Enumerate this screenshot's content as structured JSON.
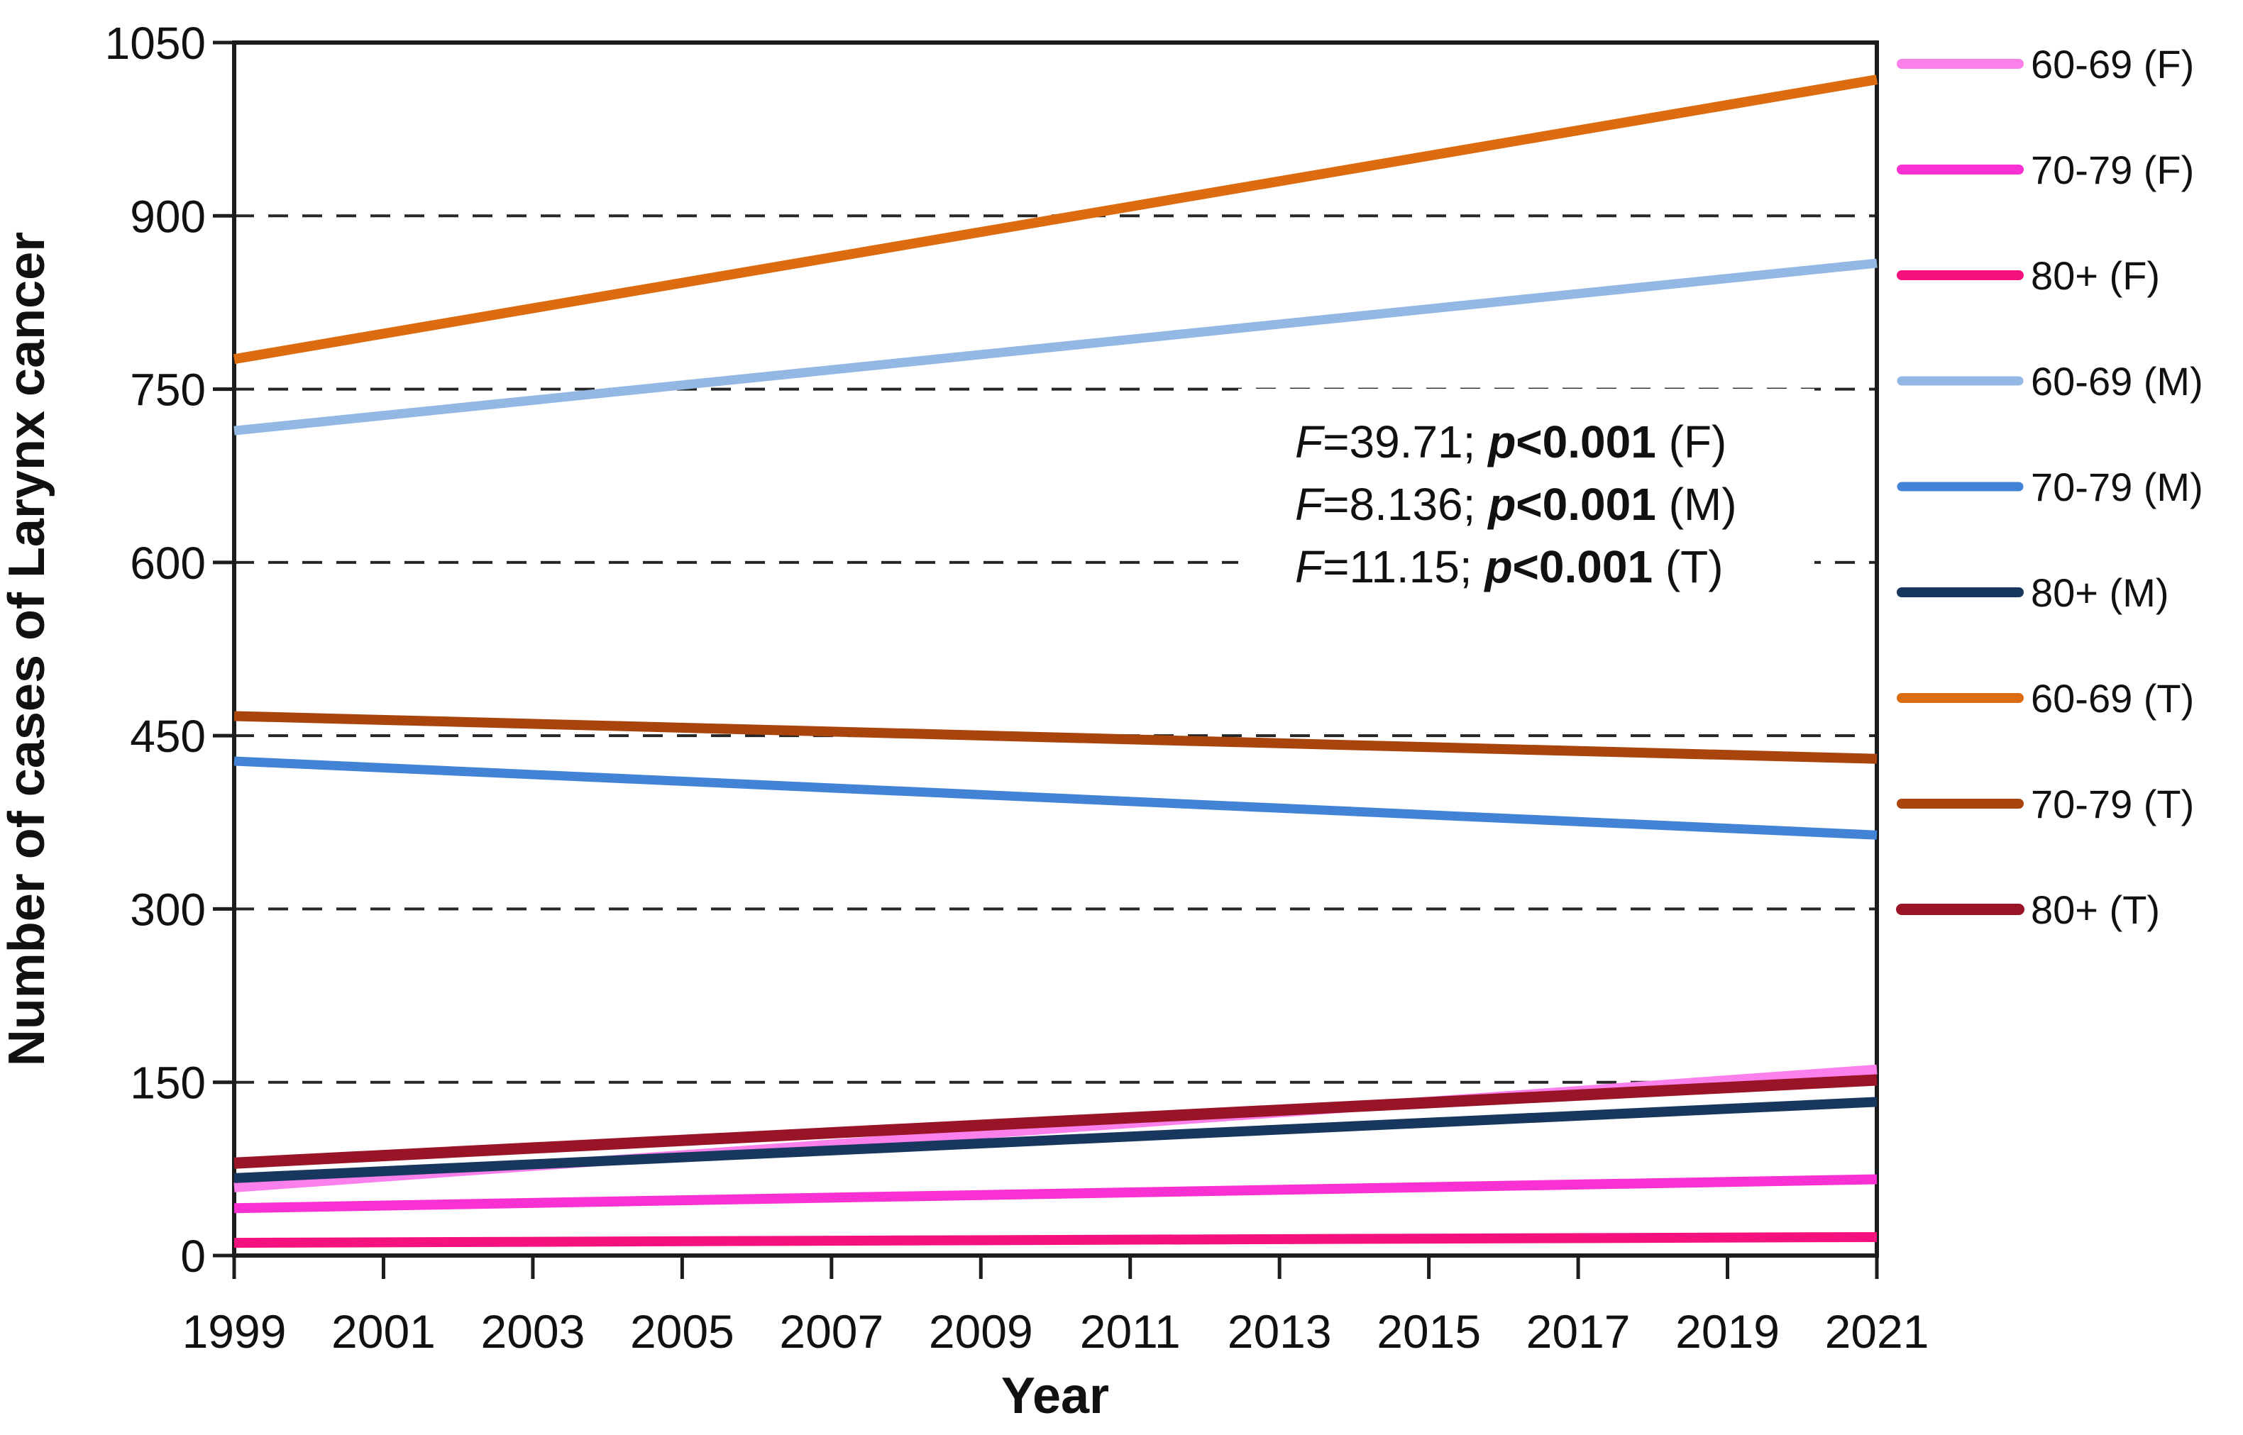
{
  "chart_data": {
    "type": "line",
    "title": "",
    "xlabel": "Year",
    "ylabel": "Number of cases of Larynx cancer",
    "xlim": [
      1999,
      2021
    ],
    "ylim": [
      0,
      1050
    ],
    "xtick_values": [
      1999,
      2001,
      2003,
      2005,
      2007,
      2009,
      2011,
      2013,
      2015,
      2017,
      2019,
      2021
    ],
    "ytick_values": [
      0,
      150,
      300,
      450,
      600,
      750,
      900,
      1050
    ],
    "grid": {
      "horizontal_dashed_at": [
        150,
        300,
        450,
        600,
        750,
        900
      ],
      "color": "#262626",
      "style": "dashed"
    },
    "legend_position": "right-outside",
    "series": [
      {
        "name": "60-69 (F)",
        "color": "#fb80ec",
        "stroke_width": 14,
        "x": [
          1999,
          2021
        ],
        "values": [
          59,
          161
        ]
      },
      {
        "name": "70-79 (F)",
        "color": "#f930d2",
        "stroke_width": 14,
        "x": [
          1999,
          2021
        ],
        "values": [
          41,
          66
        ]
      },
      {
        "name": "80+ (F)",
        "color": "#f5117e",
        "stroke_width": 14,
        "x": [
          1999,
          2021
        ],
        "values": [
          11,
          16
        ]
      },
      {
        "name": "60-69 (M)",
        "color": "#94b8e4",
        "stroke_width": 13,
        "x": [
          1999,
          2021
        ],
        "values": [
          714,
          859
        ]
      },
      {
        "name": "70-79 (M)",
        "color": "#4383d6",
        "stroke_width": 13,
        "x": [
          1999,
          2021
        ],
        "values": [
          428,
          364
        ]
      },
      {
        "name": "80+ (M)",
        "color": "#17375e",
        "stroke_width": 14,
        "x": [
          1999,
          2021
        ],
        "values": [
          67,
          133
        ]
      },
      {
        "name": "60-69 (T)",
        "color": "#dd6b10",
        "stroke_width": 14,
        "x": [
          1999,
          2021
        ],
        "values": [
          776,
          1018
        ]
      },
      {
        "name": "70-79 (T)",
        "color": "#a8440c",
        "stroke_width": 14,
        "x": [
          1999,
          2021
        ],
        "values": [
          467,
          430
        ]
      },
      {
        "name": "80+ (T)",
        "color": "#9a1428",
        "stroke_width": 16,
        "x": [
          1999,
          2021
        ],
        "values": [
          80,
          152
        ]
      }
    ],
    "annotation": {
      "lines": [
        {
          "text": "F=39.71; p<0.001 (F)",
          "segments": [
            {
              "t": "F",
              "s": "i"
            },
            {
              "t": "=39.71; ",
              "s": "n"
            },
            {
              "t": "p",
              "s": "bi"
            },
            {
              "t": "<0.001",
              "s": "b"
            },
            {
              "t": " (F)",
              "s": "n"
            }
          ]
        },
        {
          "text": "F=8.136; p<0.001 (M)",
          "segments": [
            {
              "t": "F",
              "s": "i"
            },
            {
              "t": "=8.136; ",
              "s": "n"
            },
            {
              "t": "p",
              "s": "bi"
            },
            {
              "t": "<0.001",
              "s": "b"
            },
            {
              "t": " (M)",
              "s": "n"
            }
          ]
        },
        {
          "text": "F=11.15; p<0.001 (T)",
          "segments": [
            {
              "t": "F",
              "s": "i"
            },
            {
              "t": "=11.15; ",
              "s": "n"
            },
            {
              "t": "p",
              "s": "bi"
            },
            {
              "t": "<0.001",
              "s": "b"
            },
            {
              "t": " (T)",
              "s": "n"
            }
          ]
        }
      ]
    }
  }
}
